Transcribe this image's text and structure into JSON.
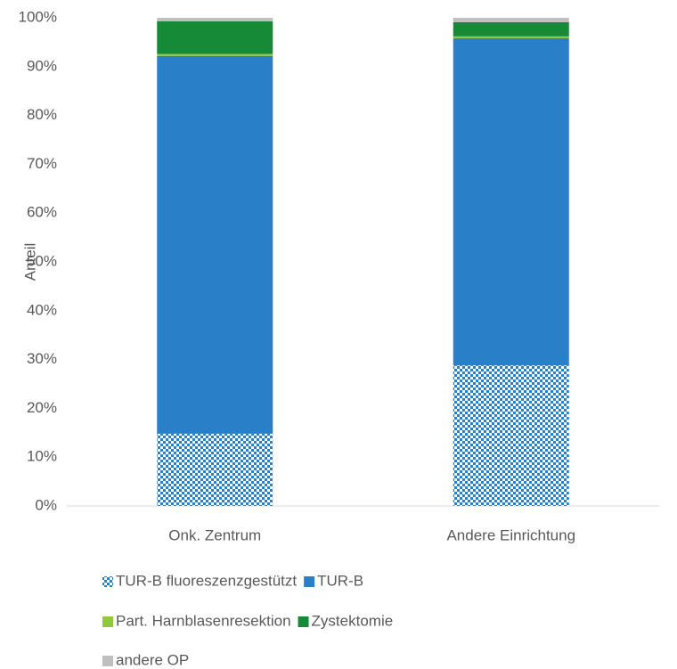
{
  "chart_data": {
    "type": "stacked_bar",
    "y_label": "Anteil",
    "categories": [
      "Onk. Zentrum",
      "Andere Einrichtung"
    ],
    "series": [
      {
        "name": "TUR-B fluoreszenzgestützt",
        "color": "#2a7fc9",
        "pattern": "dots",
        "values": [
          14.8,
          28.8
        ]
      },
      {
        "name": "TUR-B",
        "color": "#2a7fc9",
        "values": [
          77.4,
          67.0
        ]
      },
      {
        "name": "Part. Harnblasenresektion",
        "color": "#92c83e",
        "values": [
          0.4,
          0.4
        ]
      },
      {
        "name": "Zystektomie",
        "color": "#178a38",
        "values": [
          6.7,
          2.9
        ]
      },
      {
        "name": "andere OP",
        "color": "#bfbfbf",
        "values": [
          0.7,
          0.9
        ]
      }
    ],
    "ylim": [
      0,
      100
    ],
    "yticks": [
      {
        "value": 0,
        "label": "0%"
      },
      {
        "value": 10,
        "label": "10%"
      },
      {
        "value": 20,
        "label": "20%"
      },
      {
        "value": 30,
        "label": "30%"
      },
      {
        "value": 40,
        "label": "40%"
      },
      {
        "value": 50,
        "label": "50%"
      },
      {
        "value": 60,
        "label": "60%"
      },
      {
        "value": 70,
        "label": "70%"
      },
      {
        "value": 80,
        "label": "80%"
      },
      {
        "value": 90,
        "label": "90%"
      },
      {
        "value": 100,
        "label": "100%"
      }
    ],
    "grid": false,
    "legend": "bottom"
  }
}
